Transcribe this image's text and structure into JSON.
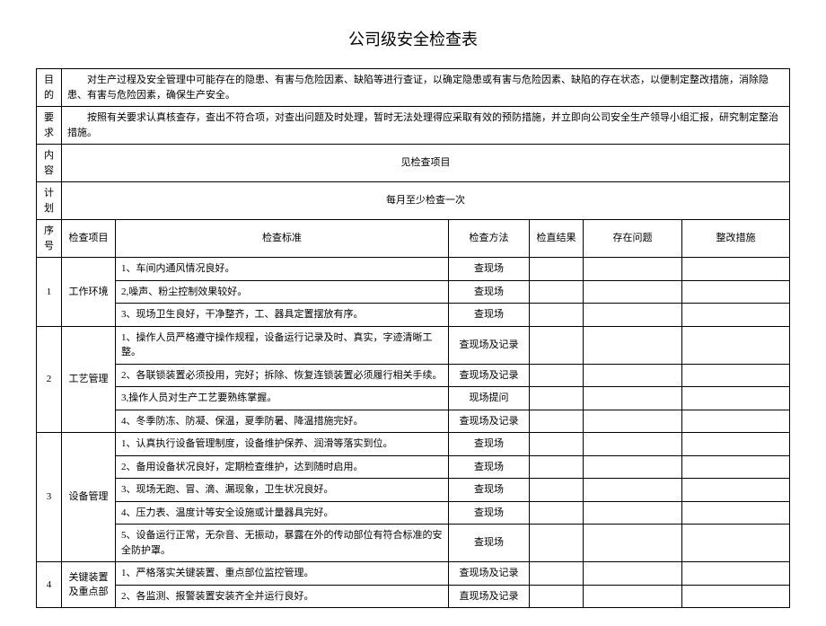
{
  "title": "公司级安全检查表",
  "header": {
    "purpose_label": "目的",
    "purpose_text": "对生产过程及安全管理中可能存在的隐患、有害与危险因素、缺陷等进行查证，以确定隐患或有害与危险因素、缺陷的存在状态，以便制定整改措施，消除隐患、有害与危险因素，确保生产安全。",
    "require_label": "要求",
    "require_text": "按照有关要求认真核查存，查出不符合项，对查出问题及时处理，暂时无法处理得应采取有效的预防措施，并立即向公司安全生产领导小组汇报，研究制定整治措施。",
    "content_label": "内容",
    "content_text": "见检查项目",
    "plan_label": "计划",
    "plan_text": "每月至少检查一次"
  },
  "columns": {
    "seq": "序号",
    "item": "检查项目",
    "std": "检查标准",
    "method": "检查方法",
    "result": "检直结果",
    "problem": "存在问题",
    "action": "整改措施"
  },
  "sections": [
    {
      "seq": "1",
      "item": "工作环境",
      "rows": [
        {
          "std": "1、车间内通风情况良好。",
          "method": "查现场"
        },
        {
          "std": "2,噪声、粉尘控制效果较好。",
          "method": "查现场"
        },
        {
          "std": "3、现场卫生良好，干净整齐，工、器具定置摆放有序。",
          "method": "查现场"
        }
      ]
    },
    {
      "seq": "2",
      "item": "工艺管理",
      "rows": [
        {
          "std": "1、操作人员严格遵守操作规程，设备运行记录及时、真实，字迹清晰工整。",
          "method": "查现场及记录"
        },
        {
          "std": "2、各联锁装置必须投用，完好；拆除、恢复连锁装置必须履行相关手续。",
          "method": "查现场及记录"
        },
        {
          "std": "3,操作人员对生产工艺要熟练掌握。",
          "method": "现场提问"
        },
        {
          "std": "4、冬季防冻、防凝、保温，夏季防暑、降温措施完好。",
          "method": "查现场及记录"
        }
      ]
    },
    {
      "seq": "3",
      "item": "设备管理",
      "rows": [
        {
          "std": "1、认真执行设备管理制度，设备维护保养、润滑等落实到位。",
          "method": "查现场"
        },
        {
          "std": "2、备用设备状况良好，定期检查维护，达到随时启用。",
          "method": "查现场"
        },
        {
          "std": "3、现场无跑、冒、滴、漏现象，卫生状况良好。",
          "method": "查现场"
        },
        {
          "std": "4、压力表、温度计等安全设施或计量器具完好。",
          "method": "查现场"
        },
        {
          "std": "5、设备运行正常，无杂音、无振动，暴露在外的传动部位有符合标准的安全防护罩。",
          "method": "查现场"
        }
      ]
    },
    {
      "seq": "4",
      "item": "关键装置及重点部",
      "rows": [
        {
          "std": "1、严格落实关键装置、重点部位监控管理。",
          "method": "查现场及记录"
        },
        {
          "std": "2、各监测、报警装置安装齐全并运行良好。",
          "method": "直现场及记录"
        }
      ]
    }
  ]
}
